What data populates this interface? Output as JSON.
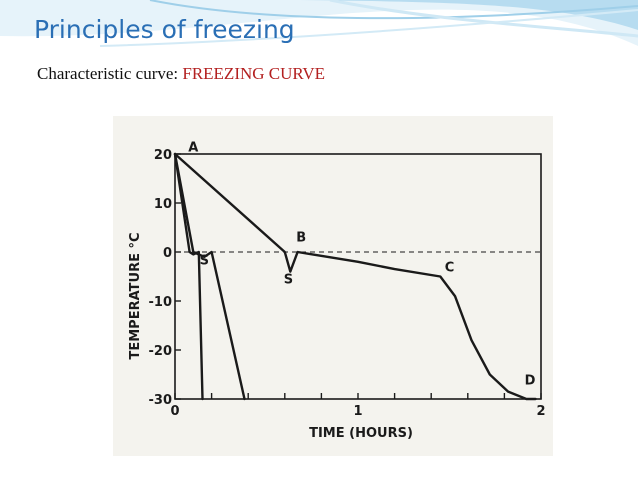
{
  "slide": {
    "title": "Principles of freezing",
    "subtitle_prefix": "Characteristic curve: ",
    "subtitle_highlight": "FREEZING CURVE",
    "title_color": "#2a6fb5",
    "highlight_color": "#b32020"
  },
  "chart_data": {
    "type": "line",
    "xlabel": "TIME (HOURS)",
    "ylabel": "TEMPERATURE °C",
    "xlim": [
      0,
      2
    ],
    "ylim": [
      -30,
      20
    ],
    "x_ticks": [
      {
        "value": 0,
        "label": "0"
      },
      {
        "value": 0.2,
        "label": ""
      },
      {
        "value": 0.4,
        "label": ""
      },
      {
        "value": 0.6,
        "label": ""
      },
      {
        "value": 0.8,
        "label": ""
      },
      {
        "value": 1,
        "label": "1"
      },
      {
        "value": 1.2,
        "label": ""
      },
      {
        "value": 1.4,
        "label": ""
      },
      {
        "value": 1.6,
        "label": ""
      },
      {
        "value": 1.8,
        "label": ""
      },
      {
        "value": 2,
        "label": "2"
      }
    ],
    "y_ticks": [
      {
        "value": 20,
        "label": "20"
      },
      {
        "value": 10,
        "label": "10"
      },
      {
        "value": 0,
        "label": "0"
      },
      {
        "value": -10,
        "label": "-10"
      },
      {
        "value": -20,
        "label": "-20"
      },
      {
        "value": -30,
        "label": "-30"
      }
    ],
    "reference_line": {
      "y": 0,
      "style": "dashed"
    },
    "series": [
      {
        "x": [
          0,
          0.08,
          0.1,
          0.13,
          0.15
        ],
        "y": [
          20,
          0,
          -0.5,
          0,
          -30
        ]
      },
      {
        "x": [
          0,
          0.1,
          0.16,
          0.2,
          0.38
        ],
        "y": [
          20,
          0,
          -1,
          0,
          -30
        ]
      },
      {
        "x": [
          0,
          0.6,
          0.63,
          0.67,
          1.0,
          1.2,
          1.45,
          1.53,
          1.62,
          1.72,
          1.82,
          1.92,
          1.97
        ],
        "y": [
          20,
          0,
          -4,
          0,
          -2,
          -3.5,
          -5,
          -9,
          -18,
          -25,
          -28.5,
          -30,
          -30
        ]
      }
    ],
    "point_labels": [
      {
        "text": "A",
        "x": 0.1,
        "y": 20.5
      },
      {
        "text": "S",
        "x": 0.16,
        "y": -2.5
      },
      {
        "text": "B",
        "x": 0.69,
        "y": 2.1
      },
      {
        "text": "S",
        "x": 0.62,
        "y": -6.4
      },
      {
        "text": "C",
        "x": 1.5,
        "y": -4
      },
      {
        "text": "D",
        "x": 1.94,
        "y": -27
      }
    ]
  }
}
